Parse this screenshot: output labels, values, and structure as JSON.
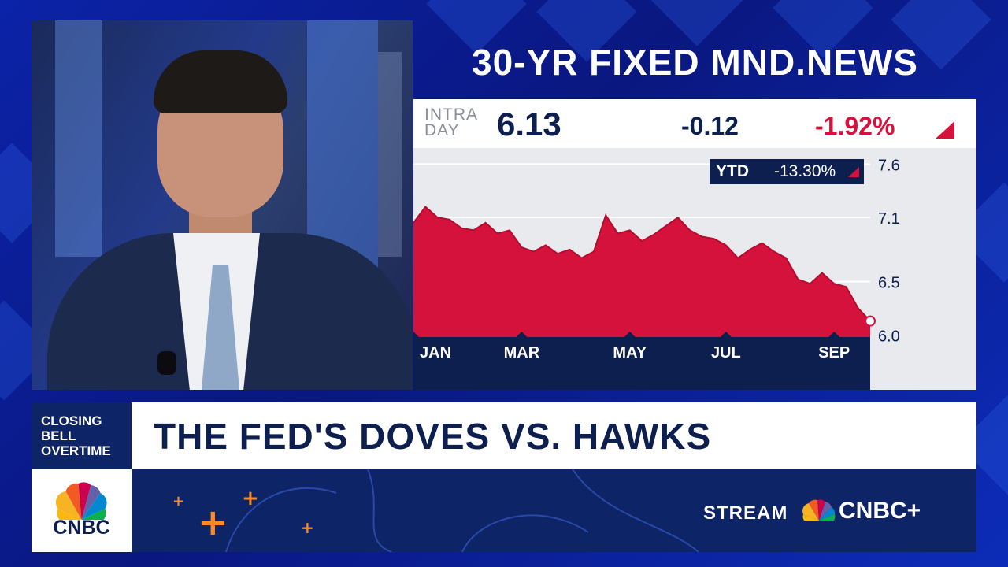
{
  "chart": {
    "title": "30-YR FIXED MND.NEWS",
    "intraday_label_line1": "INTRA",
    "intraday_label_line2": "DAY",
    "price": "6.13",
    "change": "-0.12",
    "change_pct": "-1.92%",
    "ytd_label": "YTD",
    "ytd_value": "-13.30%",
    "colors": {
      "area": "#d4123b",
      "axis_bar": "#0d1f4f",
      "up_down": "#d4123b"
    }
  },
  "chart_data": {
    "type": "area",
    "x": [
      "Jan 1",
      "Jan 8",
      "Jan 15",
      "Jan 22",
      "Jan 29",
      "Feb 5",
      "Feb 12",
      "Feb 19",
      "Feb 26",
      "Mar 4",
      "Mar 11",
      "Mar 18",
      "Mar 25",
      "Apr 1",
      "Apr 8",
      "Apr 15",
      "Apr 22",
      "Apr 29",
      "May 6",
      "May 13",
      "May 20",
      "May 27",
      "Jun 3",
      "Jun 10",
      "Jun 17",
      "Jun 24",
      "Jul 1",
      "Jul 8",
      "Jul 15",
      "Jul 22",
      "Jul 29",
      "Aug 5",
      "Aug 12",
      "Aug 19",
      "Aug 26",
      "Sep 2",
      "Sep 9",
      "Sep 16",
      "Sep 23"
    ],
    "y": [
      7.05,
      7.2,
      7.1,
      7.08,
      7.0,
      6.98,
      7.05,
      6.95,
      6.98,
      6.82,
      6.78,
      6.84,
      6.76,
      6.8,
      6.72,
      6.78,
      7.12,
      6.95,
      6.98,
      6.88,
      6.94,
      7.02,
      7.1,
      6.98,
      6.92,
      6.9,
      6.84,
      6.72,
      6.8,
      6.86,
      6.78,
      6.72,
      6.52,
      6.48,
      6.58,
      6.48,
      6.45,
      6.25,
      6.13
    ],
    "xticks": [
      "JAN",
      "MAR",
      "MAY",
      "JUL",
      "SEP"
    ],
    "yticks": [
      "7.6",
      "7.1",
      "6.5",
      "6.0"
    ],
    "ylim": [
      5.98,
      7.75
    ],
    "grid": true,
    "last_value": 6.13
  },
  "lower_third": {
    "show_line1": "CLOSING",
    "show_line2": "BELL",
    "show_line3": "OVERTIME",
    "headline": "THE FED'S DOVES VS. HAWKS",
    "logo_text": "CNBC",
    "stream_label": "STREAM",
    "stream_brand": "CNBC+"
  }
}
